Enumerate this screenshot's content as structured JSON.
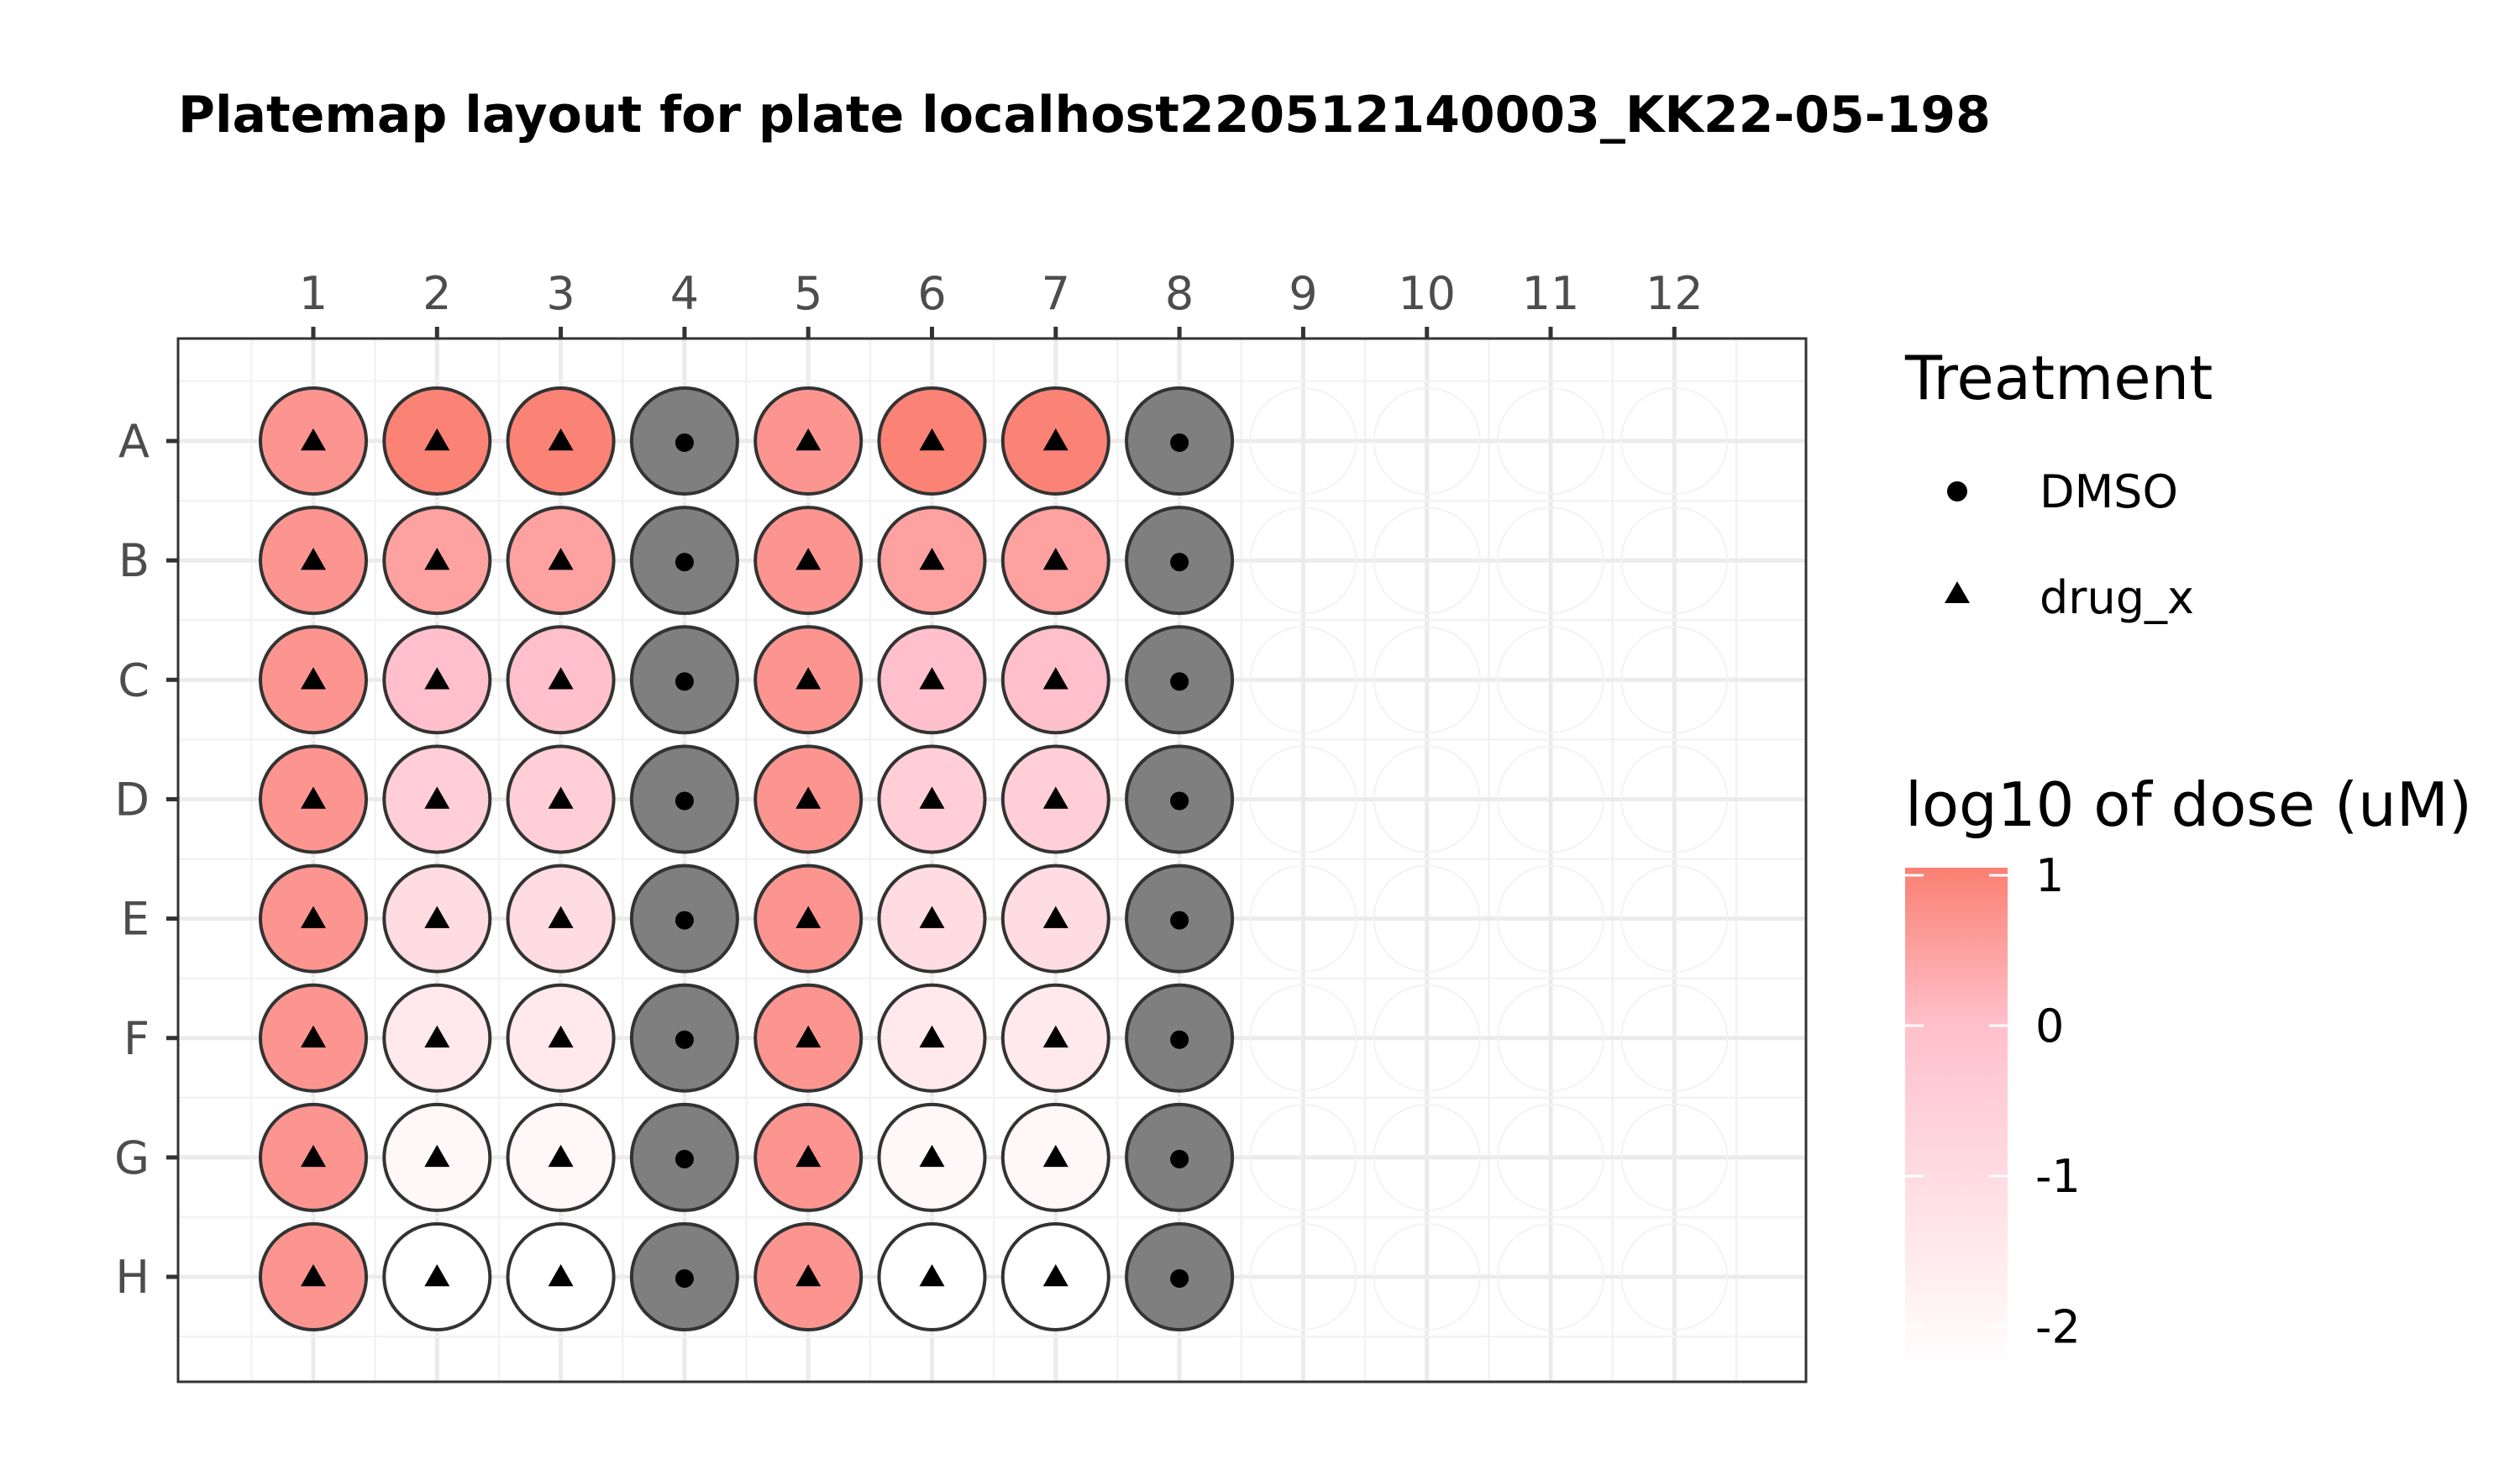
{
  "chart_data": {
    "type": "platemap",
    "title": "Platemap layout for plate localhost220512140003_KK22-05-198",
    "columns": [
      "1",
      "2",
      "3",
      "4",
      "5",
      "6",
      "7",
      "8",
      "9",
      "10",
      "11",
      "12"
    ],
    "rows": [
      "A",
      "B",
      "C",
      "D",
      "E",
      "F",
      "G",
      "H"
    ],
    "treatment_legend": {
      "title": "Treatment",
      "items": [
        {
          "label": "DMSO",
          "shape": "circle"
        },
        {
          "label": "drug_x",
          "shape": "triangle"
        }
      ]
    },
    "dose_legend": {
      "title": "log10 of dose (uM)",
      "ticks": [
        "1",
        "0",
        "-1",
        "-2"
      ],
      "range": [
        -2.3,
        1.05
      ],
      "low_color": "#ffffff",
      "mid_color": "#ffc0cb",
      "high_color": "#fa8072"
    },
    "na_color": "#7f7f7f",
    "wells": [
      {
        "row": "A",
        "col": 1,
        "treatment": "drug_x",
        "log10_dose": 0.7
      },
      {
        "row": "A",
        "col": 2,
        "treatment": "drug_x",
        "log10_dose": 1.0
      },
      {
        "row": "A",
        "col": 3,
        "treatment": "drug_x",
        "log10_dose": 1.0
      },
      {
        "row": "A",
        "col": 4,
        "treatment": "DMSO",
        "log10_dose": null
      },
      {
        "row": "A",
        "col": 5,
        "treatment": "drug_x",
        "log10_dose": 0.7
      },
      {
        "row": "A",
        "col": 6,
        "treatment": "drug_x",
        "log10_dose": 1.0
      },
      {
        "row": "A",
        "col": 7,
        "treatment": "drug_x",
        "log10_dose": 1.0
      },
      {
        "row": "A",
        "col": 8,
        "treatment": "DMSO",
        "log10_dose": null
      },
      {
        "row": "B",
        "col": 1,
        "treatment": "drug_x",
        "log10_dose": 0.7
      },
      {
        "row": "B",
        "col": 2,
        "treatment": "drug_x",
        "log10_dose": 0.5
      },
      {
        "row": "B",
        "col": 3,
        "treatment": "drug_x",
        "log10_dose": 0.5
      },
      {
        "row": "B",
        "col": 4,
        "treatment": "DMSO",
        "log10_dose": null
      },
      {
        "row": "B",
        "col": 5,
        "treatment": "drug_x",
        "log10_dose": 0.7
      },
      {
        "row": "B",
        "col": 6,
        "treatment": "drug_x",
        "log10_dose": 0.5
      },
      {
        "row": "B",
        "col": 7,
        "treatment": "drug_x",
        "log10_dose": 0.5
      },
      {
        "row": "B",
        "col": 8,
        "treatment": "DMSO",
        "log10_dose": null
      },
      {
        "row": "C",
        "col": 1,
        "treatment": "drug_x",
        "log10_dose": 0.7
      },
      {
        "row": "C",
        "col": 2,
        "treatment": "drug_x",
        "log10_dose": 0.0
      },
      {
        "row": "C",
        "col": 3,
        "treatment": "drug_x",
        "log10_dose": 0.0
      },
      {
        "row": "C",
        "col": 4,
        "treatment": "DMSO",
        "log10_dose": null
      },
      {
        "row": "C",
        "col": 5,
        "treatment": "drug_x",
        "log10_dose": 0.7
      },
      {
        "row": "C",
        "col": 6,
        "treatment": "drug_x",
        "log10_dose": 0.0
      },
      {
        "row": "C",
        "col": 7,
        "treatment": "drug_x",
        "log10_dose": 0.0
      },
      {
        "row": "C",
        "col": 8,
        "treatment": "DMSO",
        "log10_dose": null
      },
      {
        "row": "D",
        "col": 1,
        "treatment": "drug_x",
        "log10_dose": 0.7
      },
      {
        "row": "D",
        "col": 2,
        "treatment": "drug_x",
        "log10_dose": -0.5
      },
      {
        "row": "D",
        "col": 3,
        "treatment": "drug_x",
        "log10_dose": -0.5
      },
      {
        "row": "D",
        "col": 4,
        "treatment": "DMSO",
        "log10_dose": null
      },
      {
        "row": "D",
        "col": 5,
        "treatment": "drug_x",
        "log10_dose": 0.7
      },
      {
        "row": "D",
        "col": 6,
        "treatment": "drug_x",
        "log10_dose": -0.5
      },
      {
        "row": "D",
        "col": 7,
        "treatment": "drug_x",
        "log10_dose": -0.5
      },
      {
        "row": "D",
        "col": 8,
        "treatment": "DMSO",
        "log10_dose": null
      },
      {
        "row": "E",
        "col": 1,
        "treatment": "drug_x",
        "log10_dose": 0.7
      },
      {
        "row": "E",
        "col": 2,
        "treatment": "drug_x",
        "log10_dose": -1.0
      },
      {
        "row": "E",
        "col": 3,
        "treatment": "drug_x",
        "log10_dose": -1.0
      },
      {
        "row": "E",
        "col": 4,
        "treatment": "DMSO",
        "log10_dose": null
      },
      {
        "row": "E",
        "col": 5,
        "treatment": "drug_x",
        "log10_dose": 0.7
      },
      {
        "row": "E",
        "col": 6,
        "treatment": "drug_x",
        "log10_dose": -1.0
      },
      {
        "row": "E",
        "col": 7,
        "treatment": "drug_x",
        "log10_dose": -1.0
      },
      {
        "row": "E",
        "col": 8,
        "treatment": "DMSO",
        "log10_dose": null
      },
      {
        "row": "F",
        "col": 1,
        "treatment": "drug_x",
        "log10_dose": 0.7
      },
      {
        "row": "F",
        "col": 2,
        "treatment": "drug_x",
        "log10_dose": -1.5
      },
      {
        "row": "F",
        "col": 3,
        "treatment": "drug_x",
        "log10_dose": -1.5
      },
      {
        "row": "F",
        "col": 4,
        "treatment": "DMSO",
        "log10_dose": null
      },
      {
        "row": "F",
        "col": 5,
        "treatment": "drug_x",
        "log10_dose": 0.7
      },
      {
        "row": "F",
        "col": 6,
        "treatment": "drug_x",
        "log10_dose": -1.5
      },
      {
        "row": "F",
        "col": 7,
        "treatment": "drug_x",
        "log10_dose": -1.5
      },
      {
        "row": "F",
        "col": 8,
        "treatment": "DMSO",
        "log10_dose": null
      },
      {
        "row": "G",
        "col": 1,
        "treatment": "drug_x",
        "log10_dose": 0.7
      },
      {
        "row": "G",
        "col": 2,
        "treatment": "drug_x",
        "log10_dose": -2.0
      },
      {
        "row": "G",
        "col": 3,
        "treatment": "drug_x",
        "log10_dose": -2.0
      },
      {
        "row": "G",
        "col": 4,
        "treatment": "DMSO",
        "log10_dose": null
      },
      {
        "row": "G",
        "col": 5,
        "treatment": "drug_x",
        "log10_dose": 0.7
      },
      {
        "row": "G",
        "col": 6,
        "treatment": "drug_x",
        "log10_dose": -2.0
      },
      {
        "row": "G",
        "col": 7,
        "treatment": "drug_x",
        "log10_dose": -2.0
      },
      {
        "row": "G",
        "col": 8,
        "treatment": "DMSO",
        "log10_dose": null
      },
      {
        "row": "H",
        "col": 1,
        "treatment": "drug_x",
        "log10_dose": 0.7
      },
      {
        "row": "H",
        "col": 2,
        "treatment": "drug_x",
        "log10_dose": -2.3
      },
      {
        "row": "H",
        "col": 3,
        "treatment": "drug_x",
        "log10_dose": -2.3
      },
      {
        "row": "H",
        "col": 4,
        "treatment": "DMSO",
        "log10_dose": null
      },
      {
        "row": "H",
        "col": 5,
        "treatment": "drug_x",
        "log10_dose": 0.7
      },
      {
        "row": "H",
        "col": 6,
        "treatment": "drug_x",
        "log10_dose": -2.3
      },
      {
        "row": "H",
        "col": 7,
        "treatment": "drug_x",
        "log10_dose": -2.3
      },
      {
        "row": "H",
        "col": 8,
        "treatment": "DMSO",
        "log10_dose": null
      }
    ]
  }
}
